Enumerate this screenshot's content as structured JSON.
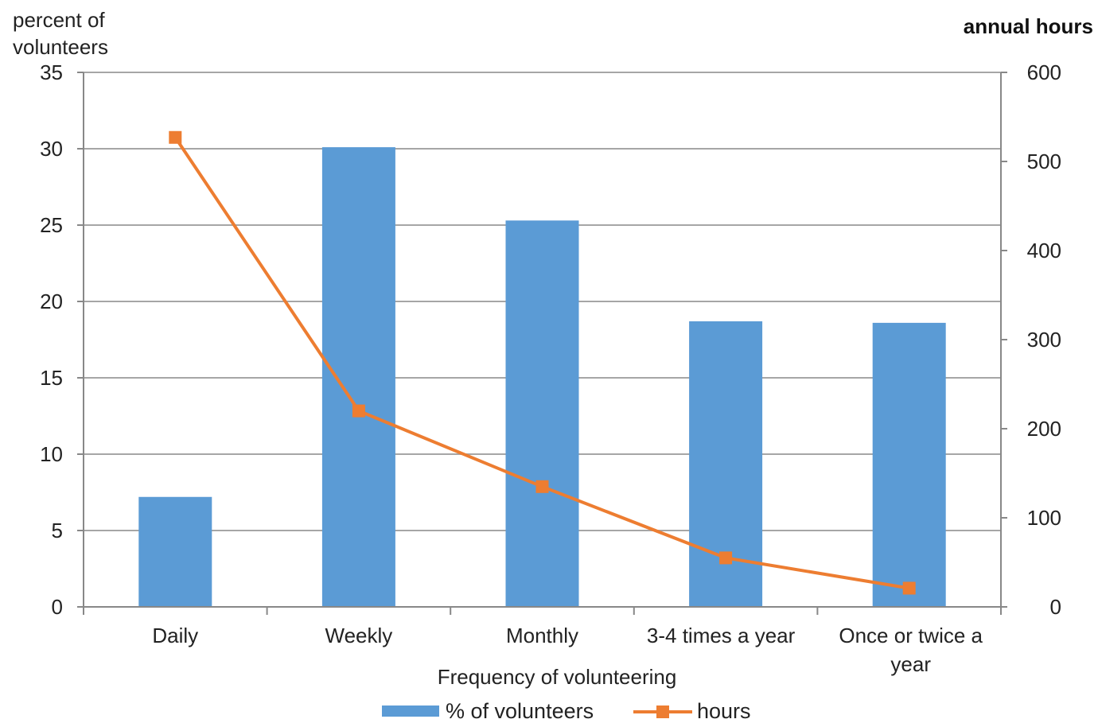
{
  "chart_data": {
    "type": "bar",
    "categories": [
      "Daily",
      "Weekly",
      "Monthly",
      "3-4 times a year",
      "Once or twice a year"
    ],
    "category_label_lines": [
      [
        "Daily"
      ],
      [
        "Weekly"
      ],
      [
        "Monthly"
      ],
      [
        "3-4 times a year"
      ],
      [
        "Once or twice a",
        "year"
      ]
    ],
    "series": [
      {
        "name": "% of volunteers",
        "type": "bar",
        "axis": "left",
        "values": [
          7.2,
          30.1,
          25.3,
          18.7,
          18.6
        ]
      },
      {
        "name": "hours",
        "type": "line",
        "axis": "right",
        "values": [
          527,
          220,
          135,
          55,
          21
        ]
      }
    ],
    "xlabel": "Frequency of volunteering",
    "ylabel_left_lines": [
      "percent of",
      "volunteers"
    ],
    "ylabel_right": "annual hours",
    "ylim_left": [
      0,
      35
    ],
    "ylim_right": [
      0,
      600
    ],
    "yticks_left": [
      "0",
      "5",
      "10",
      "15",
      "20",
      "25",
      "30",
      "35"
    ],
    "yticks_right": [
      "0",
      "100",
      "200",
      "300",
      "400",
      "500",
      "600"
    ],
    "grid": true,
    "legend_position": "bottom",
    "colors": {
      "bars": "#5b9bd5",
      "line": "#ed7d31",
      "grid": "#a6a6a6",
      "axis": "#888888"
    }
  }
}
